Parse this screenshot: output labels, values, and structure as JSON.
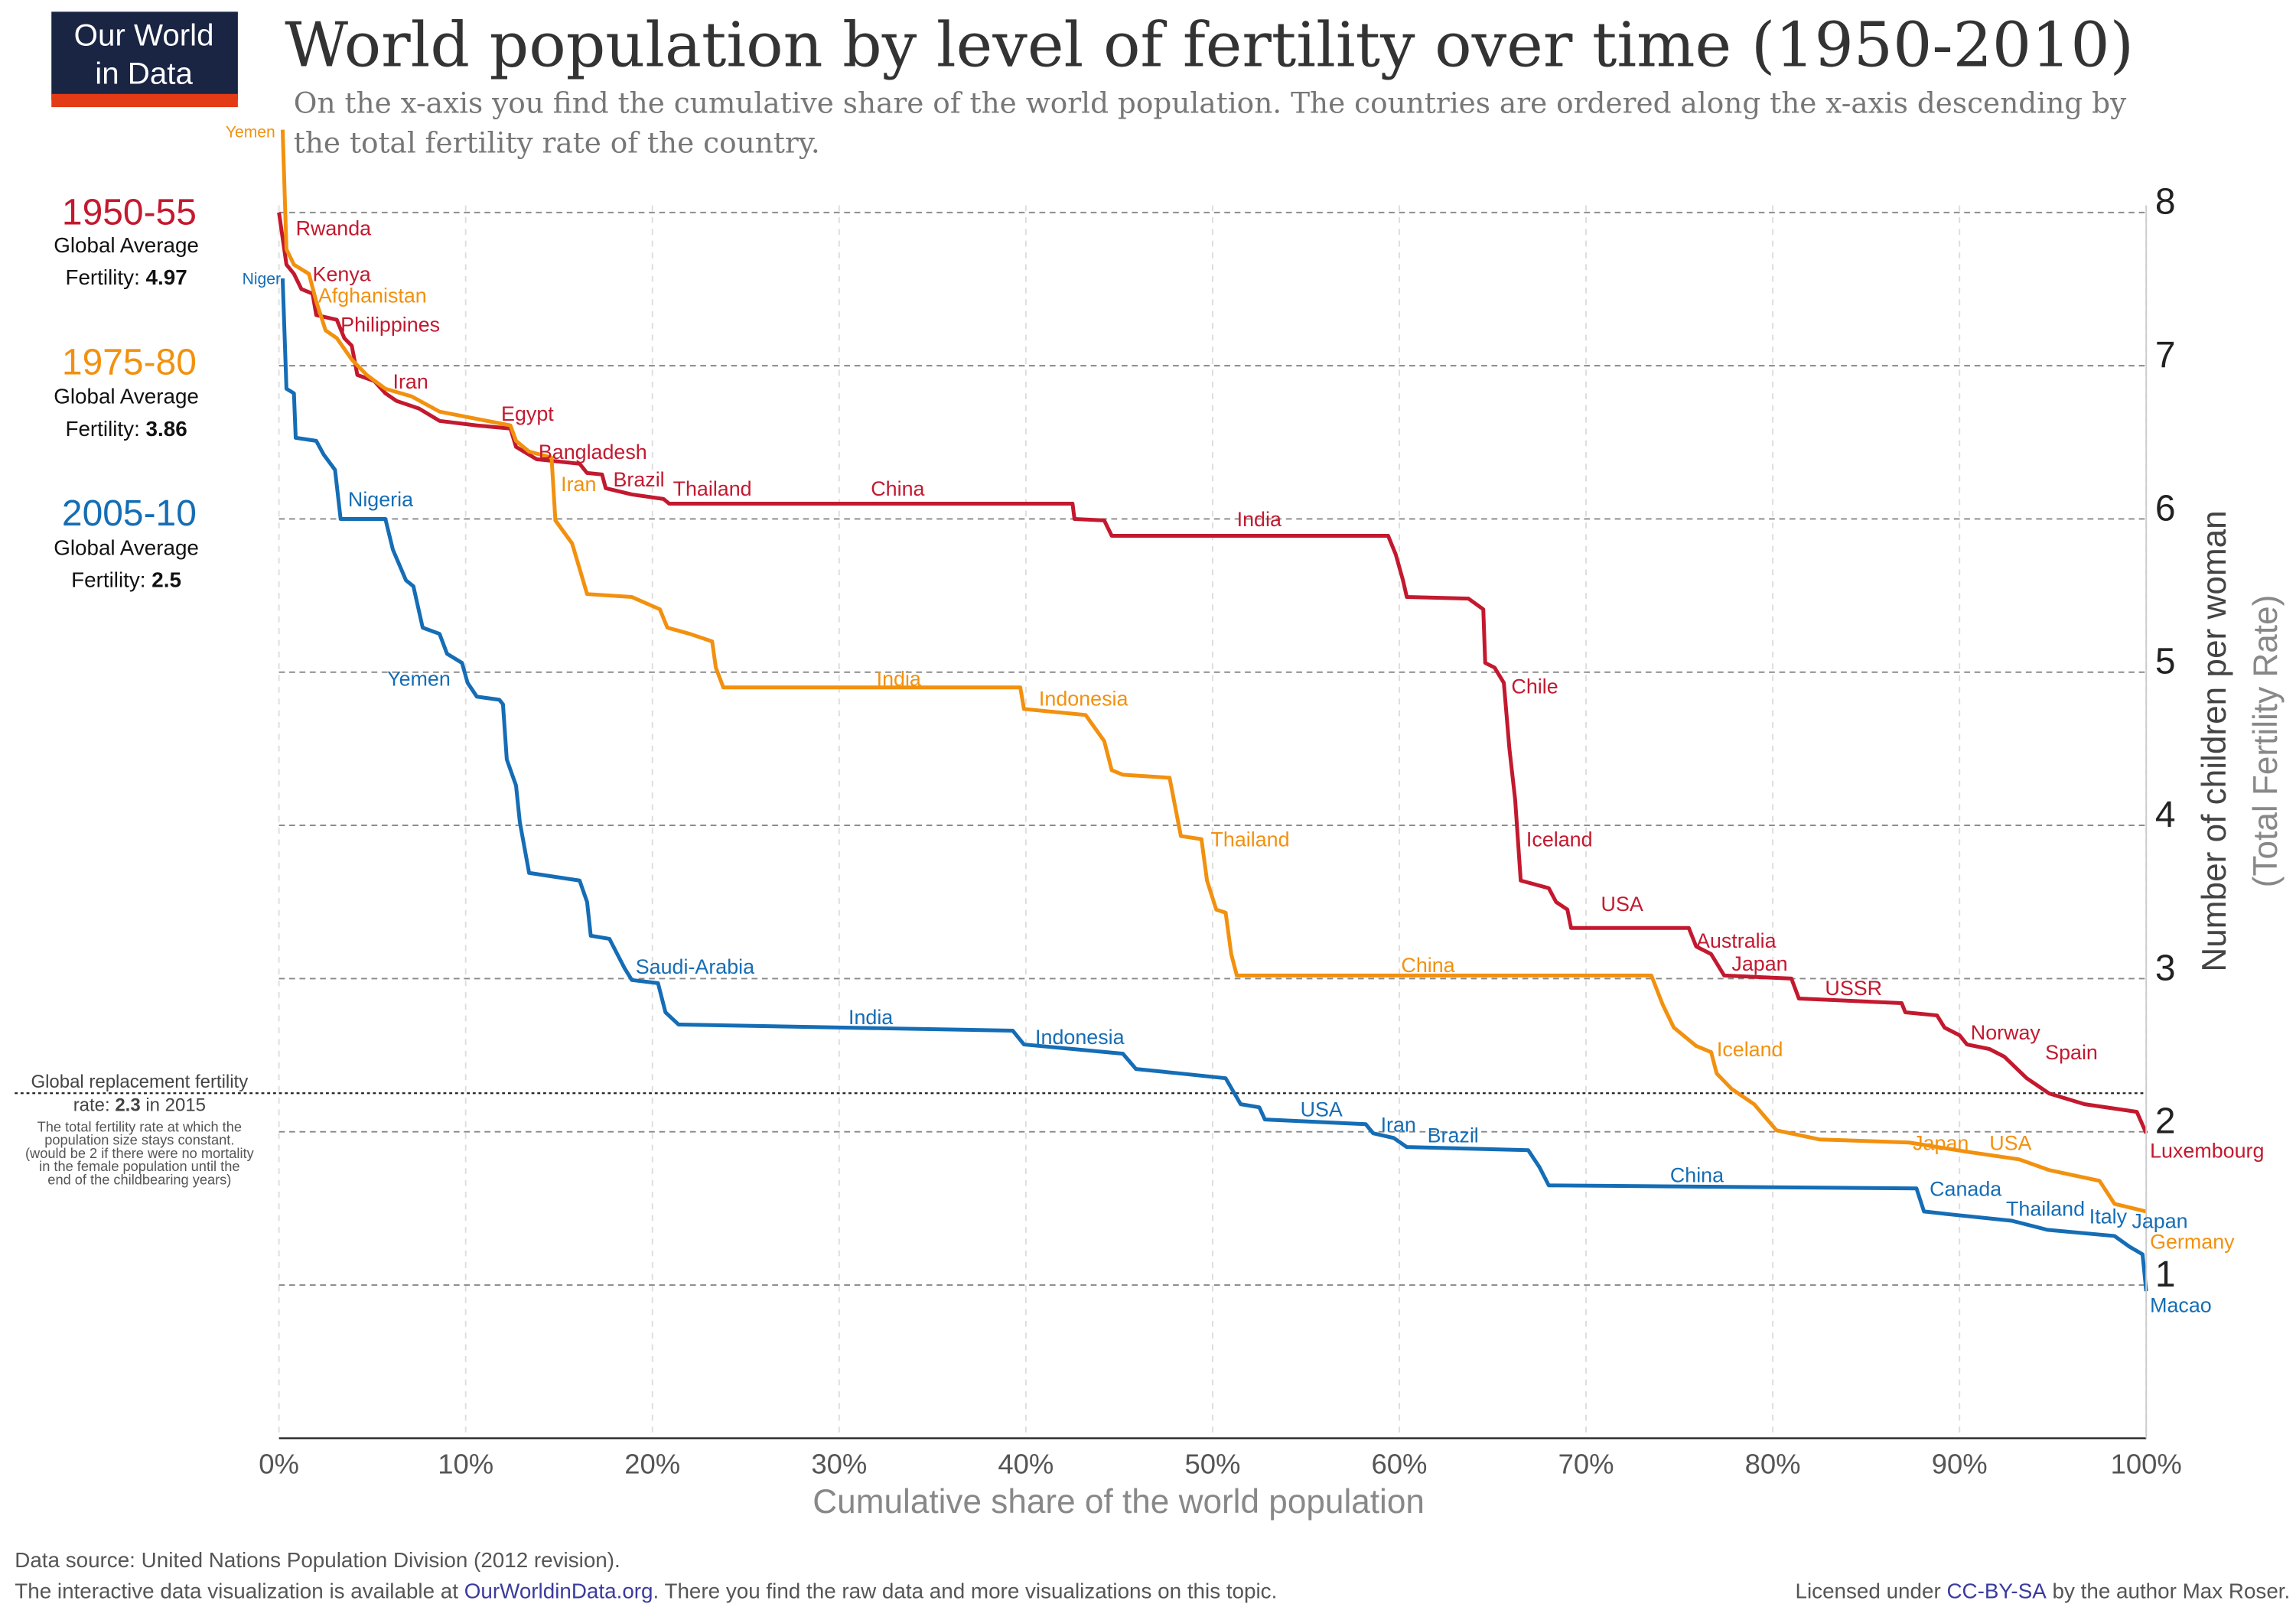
{
  "logo": {
    "line1": "Our World",
    "line2": "in Data",
    "bg": "#1a2544",
    "bar": "#e33b16"
  },
  "title": "World population by level of fertility over time (1950-2010)",
  "subtitle": [
    "On the x-axis you find the cumulative share of the world population. The countries are ordered along the x-axis descending by",
    "the total fertility rate of the country."
  ],
  "legend": [
    {
      "period": "1950-55",
      "line1": "Global Average",
      "label": "Fertility: ",
      "value": "4.97",
      "color": "#c3192f"
    },
    {
      "period": "1975-80",
      "line1": "Global Average",
      "label": "Fertility: ",
      "value": "3.86",
      "color": "#f2910f"
    },
    {
      "period": "2005-10",
      "line1": "Global Average",
      "label": "Fertility: ",
      "value": "2.5",
      "color": "#156db5"
    }
  ],
  "replacement": {
    "line1": "Global replacement fertility",
    "line2a": "rate: ",
    "line2b": "2.3",
    "line2c": " in 2015",
    "note": [
      "The total fertility rate at which the",
      "population size stays constant.",
      "(would be 2 if there were no mortality",
      "in the female population until the",
      "end of the childbearing years)"
    ],
    "value": 2.3
  },
  "chart_data": {
    "type": "line",
    "title": "World population by level of fertility over time (1950-2010)",
    "xlabel": "Cumulative share of the world population",
    "ylabel": "Number of children per woman",
    "ylabel2": "(Total Fertility Rate)",
    "xlim": [
      0,
      100
    ],
    "ylim": [
      0,
      8.5
    ],
    "xticks": [
      "0%",
      "10%",
      "20%",
      "30%",
      "40%",
      "50%",
      "60%",
      "70%",
      "80%",
      "90%",
      "100%"
    ],
    "yticks": [
      "1",
      "2",
      "3",
      "4",
      "5",
      "6",
      "7",
      "8"
    ],
    "grid": true,
    "series": [
      {
        "name": "1950-55",
        "color": "#c3192f",
        "points": [
          [
            0,
            8.0
          ],
          [
            0.4,
            7.66
          ],
          [
            0.8,
            7.6
          ],
          [
            1.2,
            7.5
          ],
          [
            1.8,
            7.47
          ],
          [
            2.0,
            7.33
          ],
          [
            3.1,
            7.3
          ],
          [
            3.5,
            7.18
          ],
          [
            3.9,
            7.13
          ],
          [
            4.2,
            6.94
          ],
          [
            5.1,
            6.9
          ],
          [
            5.7,
            6.82
          ],
          [
            6.3,
            6.77
          ],
          [
            7.5,
            6.72
          ],
          [
            8.6,
            6.64
          ],
          [
            10.6,
            6.61
          ],
          [
            12.4,
            6.59
          ],
          [
            12.7,
            6.47
          ],
          [
            13.8,
            6.39
          ],
          [
            16.1,
            6.36
          ],
          [
            16.5,
            6.3
          ],
          [
            17.3,
            6.29
          ],
          [
            17.5,
            6.2
          ],
          [
            18.9,
            6.16
          ],
          [
            20.6,
            6.13
          ],
          [
            20.9,
            6.1
          ],
          [
            42.5,
            6.1
          ],
          [
            42.6,
            6.0
          ],
          [
            44.2,
            5.99
          ],
          [
            44.6,
            5.89
          ],
          [
            59.4,
            5.89
          ],
          [
            59.8,
            5.77
          ],
          [
            60.2,
            5.6
          ],
          [
            60.4,
            5.49
          ],
          [
            63.7,
            5.48
          ],
          [
            64.5,
            5.41
          ],
          [
            64.6,
            5.06
          ],
          [
            65.1,
            5.03
          ],
          [
            65.6,
            4.93
          ],
          [
            65.9,
            4.5
          ],
          [
            66.2,
            4.17
          ],
          [
            66.5,
            3.64
          ],
          [
            68.0,
            3.59
          ],
          [
            68.4,
            3.5
          ],
          [
            69.0,
            3.45
          ],
          [
            69.2,
            3.33
          ],
          [
            75.5,
            3.33
          ],
          [
            75.9,
            3.21
          ],
          [
            76.7,
            3.16
          ],
          [
            77.4,
            3.02
          ],
          [
            81.0,
            3.0
          ],
          [
            81.4,
            2.87
          ],
          [
            86.9,
            2.84
          ],
          [
            87.1,
            2.78
          ],
          [
            88.8,
            2.76
          ],
          [
            89.2,
            2.68
          ],
          [
            90.0,
            2.63
          ],
          [
            90.4,
            2.57
          ],
          [
            91.6,
            2.54
          ],
          [
            92.4,
            2.49
          ],
          [
            93.6,
            2.35
          ],
          [
            94.8,
            2.25
          ],
          [
            96.7,
            2.18
          ],
          [
            99.5,
            2.13
          ],
          [
            100,
            1.99
          ]
        ],
        "labels": [
          [
            "Rwanda",
            0.9,
            7.9
          ],
          [
            "Kenya",
            1.8,
            7.6
          ],
          [
            "Philippines",
            3.3,
            7.27
          ],
          [
            "Iran",
            6.1,
            6.9
          ],
          [
            "Egypt",
            11.9,
            6.69
          ],
          [
            "Bangladesh",
            13.9,
            6.44
          ],
          [
            "Brazil",
            17.9,
            6.26
          ],
          [
            "Thailand",
            21.1,
            6.2
          ],
          [
            "China",
            31.7,
            6.2
          ],
          [
            "India",
            51.3,
            6.0
          ],
          [
            "Chile",
            66.0,
            4.91
          ],
          [
            "Iceland",
            66.8,
            3.91
          ],
          [
            "USA",
            70.8,
            3.49
          ],
          [
            "Australia",
            75.9,
            3.25
          ],
          [
            "Japan",
            77.8,
            3.1
          ],
          [
            "USSR",
            82.8,
            2.94
          ],
          [
            "Norway",
            90.6,
            2.65
          ],
          [
            "Spain",
            92.4,
            2.52
          ],
          [
            "Luxembourg",
            100.2,
            1.93
          ]
        ]
      },
      {
        "name": "1975-80",
        "color": "#f2910f",
        "points": [
          [
            0.2,
            8.54
          ],
          [
            0.4,
            7.76
          ],
          [
            0.8,
            7.66
          ],
          [
            1.6,
            7.6
          ],
          [
            2.0,
            7.42
          ],
          [
            2.5,
            7.23
          ],
          [
            3.1,
            7.18
          ],
          [
            3.9,
            7.04
          ],
          [
            4.7,
            6.94
          ],
          [
            5.7,
            6.85
          ],
          [
            7.1,
            6.8
          ],
          [
            8.6,
            6.7
          ],
          [
            12.4,
            6.61
          ],
          [
            12.7,
            6.51
          ],
          [
            13.4,
            6.44
          ],
          [
            14.6,
            6.4
          ],
          [
            14.8,
            5.99
          ],
          [
            15.7,
            5.84
          ],
          [
            16.5,
            5.51
          ],
          [
            18.9,
            5.49
          ],
          [
            20.4,
            5.41
          ],
          [
            20.8,
            5.29
          ],
          [
            22.0,
            5.25
          ],
          [
            23.2,
            5.2
          ],
          [
            23.4,
            5.03
          ],
          [
            23.8,
            4.9
          ],
          [
            39.7,
            4.9
          ],
          [
            39.9,
            4.76
          ],
          [
            43.2,
            4.72
          ],
          [
            44.2,
            4.55
          ],
          [
            44.6,
            4.36
          ],
          [
            45.2,
            4.33
          ],
          [
            47.7,
            4.31
          ],
          [
            48.3,
            3.93
          ],
          [
            49.4,
            3.91
          ],
          [
            49.7,
            3.64
          ],
          [
            50.2,
            3.45
          ],
          [
            50.7,
            3.43
          ],
          [
            51.0,
            3.16
          ],
          [
            51.3,
            3.02
          ],
          [
            73.5,
            3.02
          ],
          [
            74.1,
            2.83
          ],
          [
            74.7,
            2.68
          ],
          [
            75.9,
            2.56
          ],
          [
            76.7,
            2.52
          ],
          [
            77.0,
            2.38
          ],
          [
            77.8,
            2.28
          ],
          [
            79.0,
            2.18
          ],
          [
            80.2,
            2.01
          ],
          [
            82.5,
            1.95
          ],
          [
            87.3,
            1.93
          ],
          [
            90.4,
            1.87
          ],
          [
            93.2,
            1.82
          ],
          [
            94.8,
            1.75
          ],
          [
            97.5,
            1.68
          ],
          [
            98.3,
            1.53
          ],
          [
            100,
            1.48
          ]
        ],
        "labels": [
          [
            "Yemen",
            -0.2,
            8.54,
            "end"
          ],
          [
            "Afghanistan",
            2.1,
            7.46
          ],
          [
            "Iran",
            15.1,
            6.23
          ],
          [
            "India",
            32.0,
            4.96
          ],
          [
            "Indonesia",
            40.7,
            4.83
          ],
          [
            "Thailand",
            49.9,
            3.91
          ],
          [
            "China",
            60.1,
            3.09
          ],
          [
            "Iceland",
            77.0,
            2.54
          ],
          [
            "Japan",
            87.5,
            1.93
          ],
          [
            "USA",
            91.6,
            1.93
          ],
          [
            "Germany",
            100.2,
            1.49
          ]
        ]
      },
      {
        "name": "2005-10",
        "color": "#156db5",
        "points": [
          [
            0.2,
            7.57
          ],
          [
            0.4,
            6.85
          ],
          [
            0.8,
            6.82
          ],
          [
            0.9,
            6.53
          ],
          [
            2.0,
            6.51
          ],
          [
            2.4,
            6.42
          ],
          [
            3.0,
            6.32
          ],
          [
            3.3,
            6.0
          ],
          [
            5.7,
            6.0
          ],
          [
            6.1,
            5.8
          ],
          [
            6.8,
            5.6
          ],
          [
            7.2,
            5.56
          ],
          [
            7.7,
            5.29
          ],
          [
            8.6,
            5.25
          ],
          [
            9.0,
            5.12
          ],
          [
            9.8,
            5.06
          ],
          [
            10.1,
            4.93
          ],
          [
            10.6,
            4.84
          ],
          [
            11.8,
            4.82
          ],
          [
            12.0,
            4.79
          ],
          [
            12.2,
            4.43
          ],
          [
            12.7,
            4.26
          ],
          [
            12.9,
            4.02
          ],
          [
            13.4,
            3.69
          ],
          [
            16.1,
            3.64
          ],
          [
            16.5,
            3.5
          ],
          [
            16.7,
            3.28
          ],
          [
            17.7,
            3.26
          ],
          [
            18.5,
            3.07
          ],
          [
            18.9,
            2.99
          ],
          [
            20.3,
            2.97
          ],
          [
            20.7,
            2.78
          ],
          [
            21.4,
            2.7
          ],
          [
            39.3,
            2.66
          ],
          [
            39.9,
            2.57
          ],
          [
            45.2,
            2.51
          ],
          [
            45.9,
            2.41
          ],
          [
            48.3,
            2.38
          ],
          [
            50.7,
            2.35
          ],
          [
            51.5,
            2.18
          ],
          [
            52.5,
            2.16
          ],
          [
            52.8,
            2.08
          ],
          [
            58.2,
            2.05
          ],
          [
            58.6,
            1.99
          ],
          [
            59.7,
            1.96
          ],
          [
            60.4,
            1.9
          ],
          [
            66.9,
            1.88
          ],
          [
            67.5,
            1.77
          ],
          [
            68.0,
            1.65
          ],
          [
            87.7,
            1.63
          ],
          [
            88.1,
            1.48
          ],
          [
            89.6,
            1.46
          ],
          [
            92.8,
            1.42
          ],
          [
            94.7,
            1.36
          ],
          [
            98.3,
            1.32
          ],
          [
            99.1,
            1.25
          ],
          [
            99.8,
            1.2
          ],
          [
            100,
            0.96
          ]
        ],
        "labels": [
          [
            "Niger",
            0.1,
            7.58,
            "end"
          ],
          [
            "Nigeria",
            3.7,
            6.13
          ],
          [
            "Yemen",
            5.8,
            4.96
          ],
          [
            "Saudi-Arabia",
            19.1,
            3.08
          ],
          [
            "India",
            30.5,
            2.75
          ],
          [
            "Indonesia",
            40.5,
            2.62
          ],
          [
            "USA",
            54.7,
            2.15
          ],
          [
            "Iran",
            59.0,
            2.05
          ],
          [
            "Brazil",
            61.5,
            1.98
          ],
          [
            "China",
            74.5,
            1.72
          ],
          [
            "Canada",
            88.4,
            1.63
          ],
          [
            "Thailand",
            91.0,
            1.5
          ],
          [
            "Italy",
            95.5,
            1.45
          ],
          [
            "Japan",
            97.7,
            1.42
          ],
          [
            "Macao",
            100.2,
            0.87
          ]
        ]
      }
    ]
  },
  "footer": {
    "source": "Data source: United Nations Population Division (2012 revision).",
    "line2a": "The interactive data visualization is available at ",
    "link": "OurWorldinData.org",
    "line2b": ". There you find the raw data and more visualizations on this topic.",
    "licA": "Licensed under ",
    "licLink": "CC-BY-SA",
    "licB": " by the author Max Roser.",
    "linkColor": "#3b3b9e"
  }
}
